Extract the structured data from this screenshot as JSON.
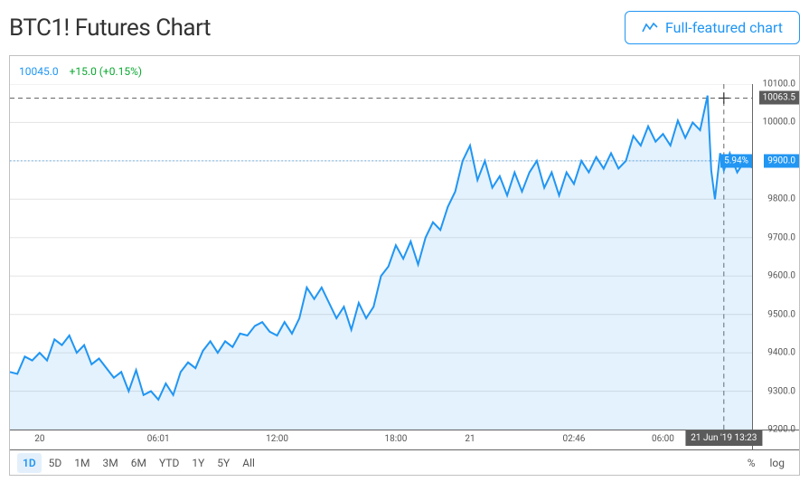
{
  "header": {
    "title": "BTC1! Futures Chart",
    "full_featured_label": "Full-featured chart"
  },
  "quote": {
    "price": "10045.0",
    "change": "+15.0 (+0.15%)"
  },
  "chart": {
    "type": "area",
    "ymin": 9200,
    "ymax": 10100,
    "yticks": [
      9200,
      9300,
      9400,
      9500,
      9600,
      9700,
      9800,
      9900,
      10000,
      10100
    ],
    "yticklabels": [
      "9200.0",
      "9300.0",
      "9400.0",
      "9500.0",
      "9600.0",
      "9700.0",
      "9800.0",
      "9900.0",
      "10000.0",
      "10100.0"
    ],
    "xmin": 0,
    "xmax": 100,
    "xticks": [
      4,
      20,
      36,
      52,
      62,
      76,
      88
    ],
    "xticklabels": [
      "20",
      "06:01",
      "12:00",
      "18:00",
      "21",
      "02:46",
      "06:00"
    ],
    "line_color": "#2196f3",
    "fill_color": "#2196f3",
    "fill_opacity": 0.12,
    "line_width": 2,
    "grid_color": "#e6e6e6",
    "background": "#ffffff",
    "crosshair_x": 96.2,
    "crosshair_y": 10063.5,
    "crosshair_color": "#666666",
    "current_price": 9900.0,
    "current_pct": "5.94%",
    "dotted_line_color": "#5aa9e6",
    "time_badge": "21 Jun '19   13:23",
    "series": [
      [
        0,
        9350
      ],
      [
        1,
        9345
      ],
      [
        2,
        9390
      ],
      [
        3,
        9380
      ],
      [
        4,
        9400
      ],
      [
        5,
        9380
      ],
      [
        6,
        9435
      ],
      [
        7,
        9420
      ],
      [
        8,
        9445
      ],
      [
        9,
        9400
      ],
      [
        10,
        9420
      ],
      [
        11,
        9370
      ],
      [
        12,
        9385
      ],
      [
        13,
        9360
      ],
      [
        14,
        9335
      ],
      [
        15,
        9350
      ],
      [
        16,
        9300
      ],
      [
        17,
        9355
      ],
      [
        18,
        9290
      ],
      [
        19,
        9300
      ],
      [
        20,
        9278
      ],
      [
        21,
        9320
      ],
      [
        22,
        9290
      ],
      [
        23,
        9350
      ],
      [
        24,
        9375
      ],
      [
        25,
        9360
      ],
      [
        26,
        9405
      ],
      [
        27,
        9430
      ],
      [
        28,
        9400
      ],
      [
        29,
        9430
      ],
      [
        30,
        9415
      ],
      [
        31,
        9450
      ],
      [
        32,
        9445
      ],
      [
        33,
        9470
      ],
      [
        34,
        9480
      ],
      [
        35,
        9455
      ],
      [
        36,
        9445
      ],
      [
        37,
        9480
      ],
      [
        38,
        9450
      ],
      [
        39,
        9490
      ],
      [
        40,
        9570
      ],
      [
        41,
        9540
      ],
      [
        42,
        9570
      ],
      [
        43,
        9530
      ],
      [
        44,
        9490
      ],
      [
        45,
        9520
      ],
      [
        46,
        9460
      ],
      [
        47,
        9530
      ],
      [
        48,
        9490
      ],
      [
        49,
        9520
      ],
      [
        50,
        9600
      ],
      [
        51,
        9625
      ],
      [
        52,
        9680
      ],
      [
        53,
        9645
      ],
      [
        54,
        9690
      ],
      [
        55,
        9630
      ],
      [
        56,
        9700
      ],
      [
        57,
        9740
      ],
      [
        58,
        9720
      ],
      [
        59,
        9780
      ],
      [
        60,
        9820
      ],
      [
        61,
        9900
      ],
      [
        62,
        9940
      ],
      [
        63,
        9850
      ],
      [
        64,
        9900
      ],
      [
        65,
        9830
      ],
      [
        66,
        9860
      ],
      [
        67,
        9810
      ],
      [
        68,
        9870
      ],
      [
        69,
        9820
      ],
      [
        70,
        9870
      ],
      [
        71,
        9900
      ],
      [
        72,
        9830
      ],
      [
        73,
        9870
      ],
      [
        74,
        9810
      ],
      [
        75,
        9870
      ],
      [
        76,
        9840
      ],
      [
        77,
        9900
      ],
      [
        78,
        9870
      ],
      [
        79,
        9910
      ],
      [
        80,
        9880
      ],
      [
        81,
        9920
      ],
      [
        82,
        9880
      ],
      [
        83,
        9900
      ],
      [
        84,
        9965
      ],
      [
        85,
        9940
      ],
      [
        86,
        9990
      ],
      [
        87,
        9950
      ],
      [
        88,
        9970
      ],
      [
        89,
        9940
      ],
      [
        90,
        10005
      ],
      [
        91,
        9960
      ],
      [
        92,
        10000
      ],
      [
        93,
        9980
      ],
      [
        94,
        10070
      ],
      [
        94.5,
        9875
      ],
      [
        95,
        9800
      ],
      [
        95.7,
        9920
      ],
      [
        96.2,
        9875
      ],
      [
        97,
        9920
      ],
      [
        98,
        9870
      ],
      [
        99,
        9900
      ],
      [
        100,
        9882
      ]
    ]
  },
  "ranges": {
    "items": [
      "1D",
      "5D",
      "1M",
      "3M",
      "6M",
      "YTD",
      "1Y",
      "5Y",
      "All"
    ],
    "active": "1D",
    "pct": "%",
    "log": "log"
  },
  "colors": {
    "accent": "#2196f3",
    "gain": "#0aa830",
    "border": "#c0c0c0",
    "text": "#333333",
    "badge_gray": "#5b5b5b"
  }
}
